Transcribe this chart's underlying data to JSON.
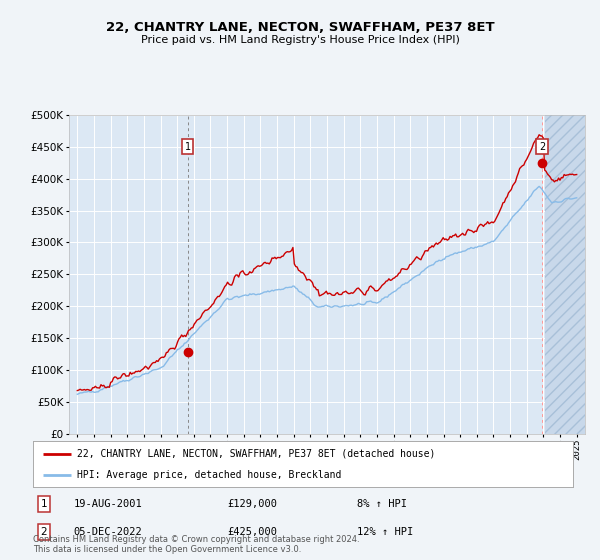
{
  "title": "22, CHANTRY LANE, NECTON, SWAFFHAM, PE37 8ET",
  "subtitle": "Price paid vs. HM Land Registry's House Price Index (HPI)",
  "red_label": "22, CHANTRY LANE, NECTON, SWAFFHAM, PE37 8ET (detached house)",
  "blue_label": "HPI: Average price, detached house, Breckland",
  "annotation1_date": "19-AUG-2001",
  "annotation1_price": "£129,000",
  "annotation1_hpi": "8% ↑ HPI",
  "annotation2_date": "05-DEC-2022",
  "annotation2_price": "£425,000",
  "annotation2_hpi": "12% ↑ HPI",
  "footer": "Contains HM Land Registry data © Crown copyright and database right 2024.\nThis data is licensed under the Open Government Licence v3.0.",
  "bg_color": "#f0f4f8",
  "plot_bg": "#dce8f4",
  "grid_color": "#ffffff",
  "red_color": "#cc0000",
  "blue_color": "#88bbe8",
  "ylim": [
    0,
    500000
  ],
  "yticks": [
    0,
    50000,
    100000,
    150000,
    200000,
    250000,
    300000,
    350000,
    400000,
    450000,
    500000
  ],
  "sale1_x": 2001.622,
  "sale1_y": 129000,
  "sale2_x": 2022.922,
  "sale2_y": 425000,
  "xmin": 1994.5,
  "xmax": 2025.5,
  "hatch_start": 2023.08
}
